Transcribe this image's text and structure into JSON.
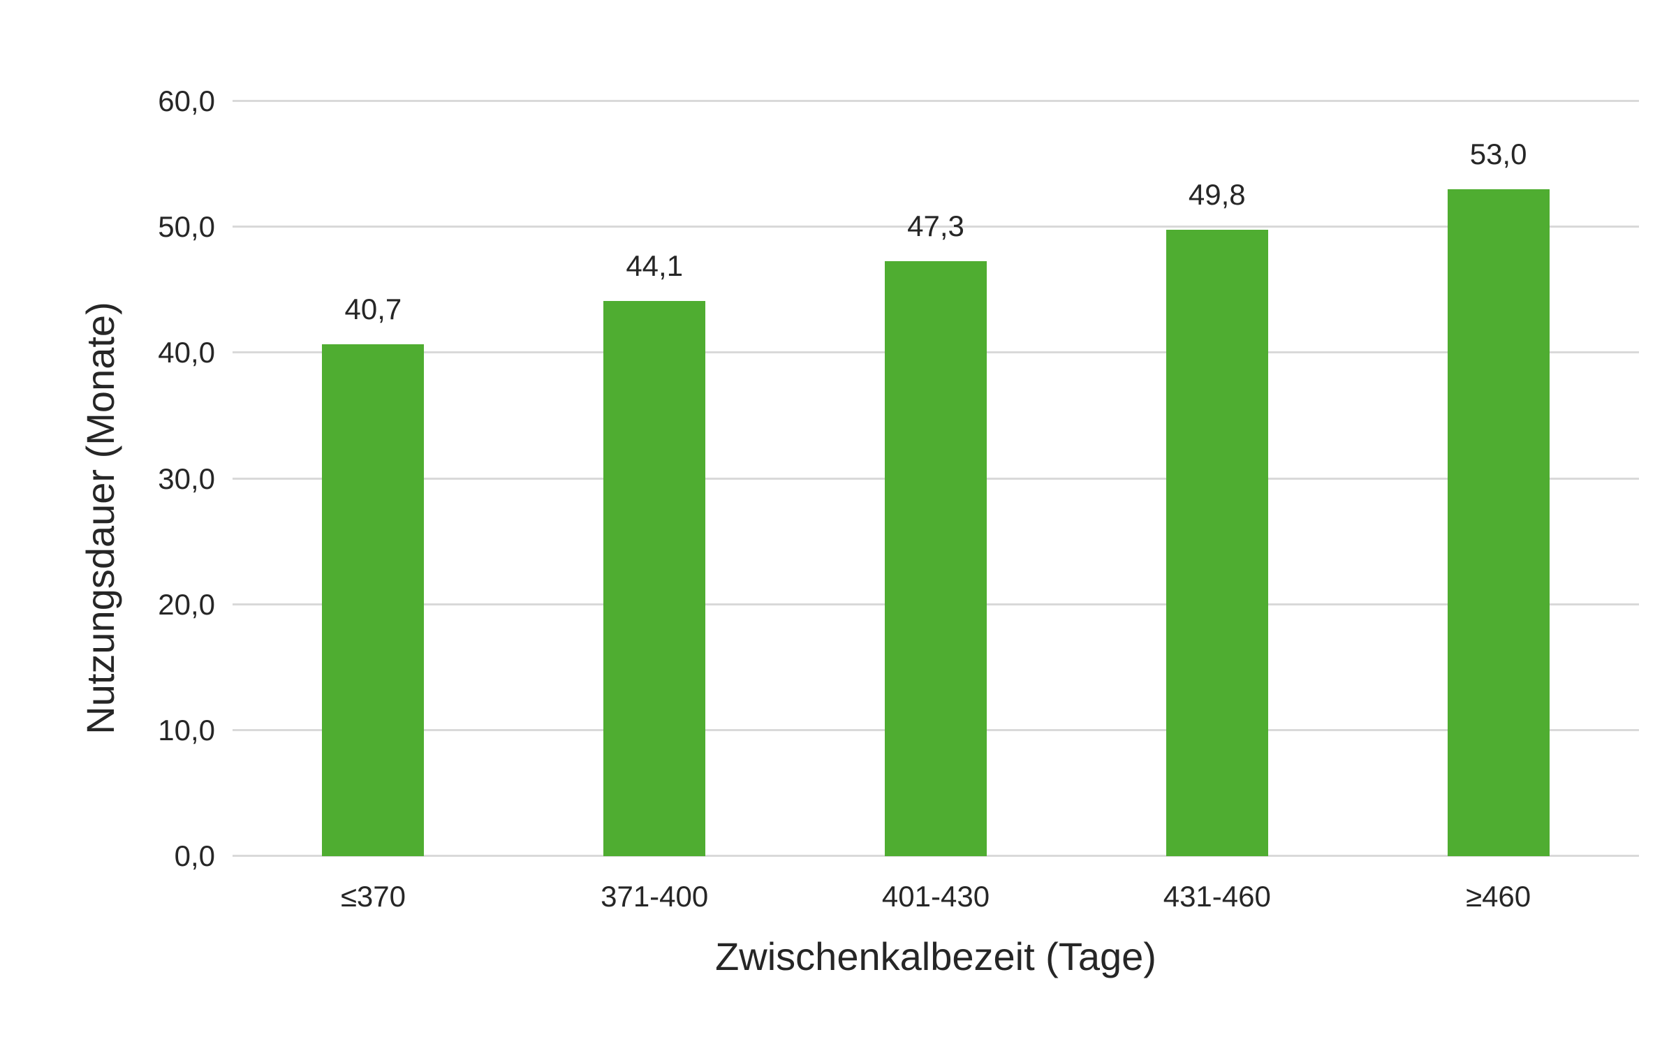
{
  "chart_data": {
    "type": "bar",
    "title": "",
    "xlabel": "Zwischenkalbezeit (Tage)",
    "ylabel": "Nutzungsdauer (Monate)",
    "categories": [
      "≤370",
      "371-400",
      "401-430",
      "431-460",
      "≥460"
    ],
    "values": [
      40.7,
      44.1,
      47.3,
      49.8,
      53.0
    ],
    "value_labels": [
      "40,7",
      "44,1",
      "47,3",
      "49,8",
      "53,0"
    ],
    "ylim": [
      0,
      60
    ],
    "yticks": [
      0,
      10,
      20,
      30,
      40,
      50,
      60
    ],
    "ytick_labels": [
      "0,0",
      "10,0",
      "20,0",
      "30,0",
      "40,0",
      "50,0",
      "60,0"
    ],
    "grid": true,
    "legend": false,
    "bar_color": "#4FAD31",
    "gridline_color": "#D9D9D9",
    "text_color": "#262626",
    "background_color": "#FFFFFF"
  }
}
